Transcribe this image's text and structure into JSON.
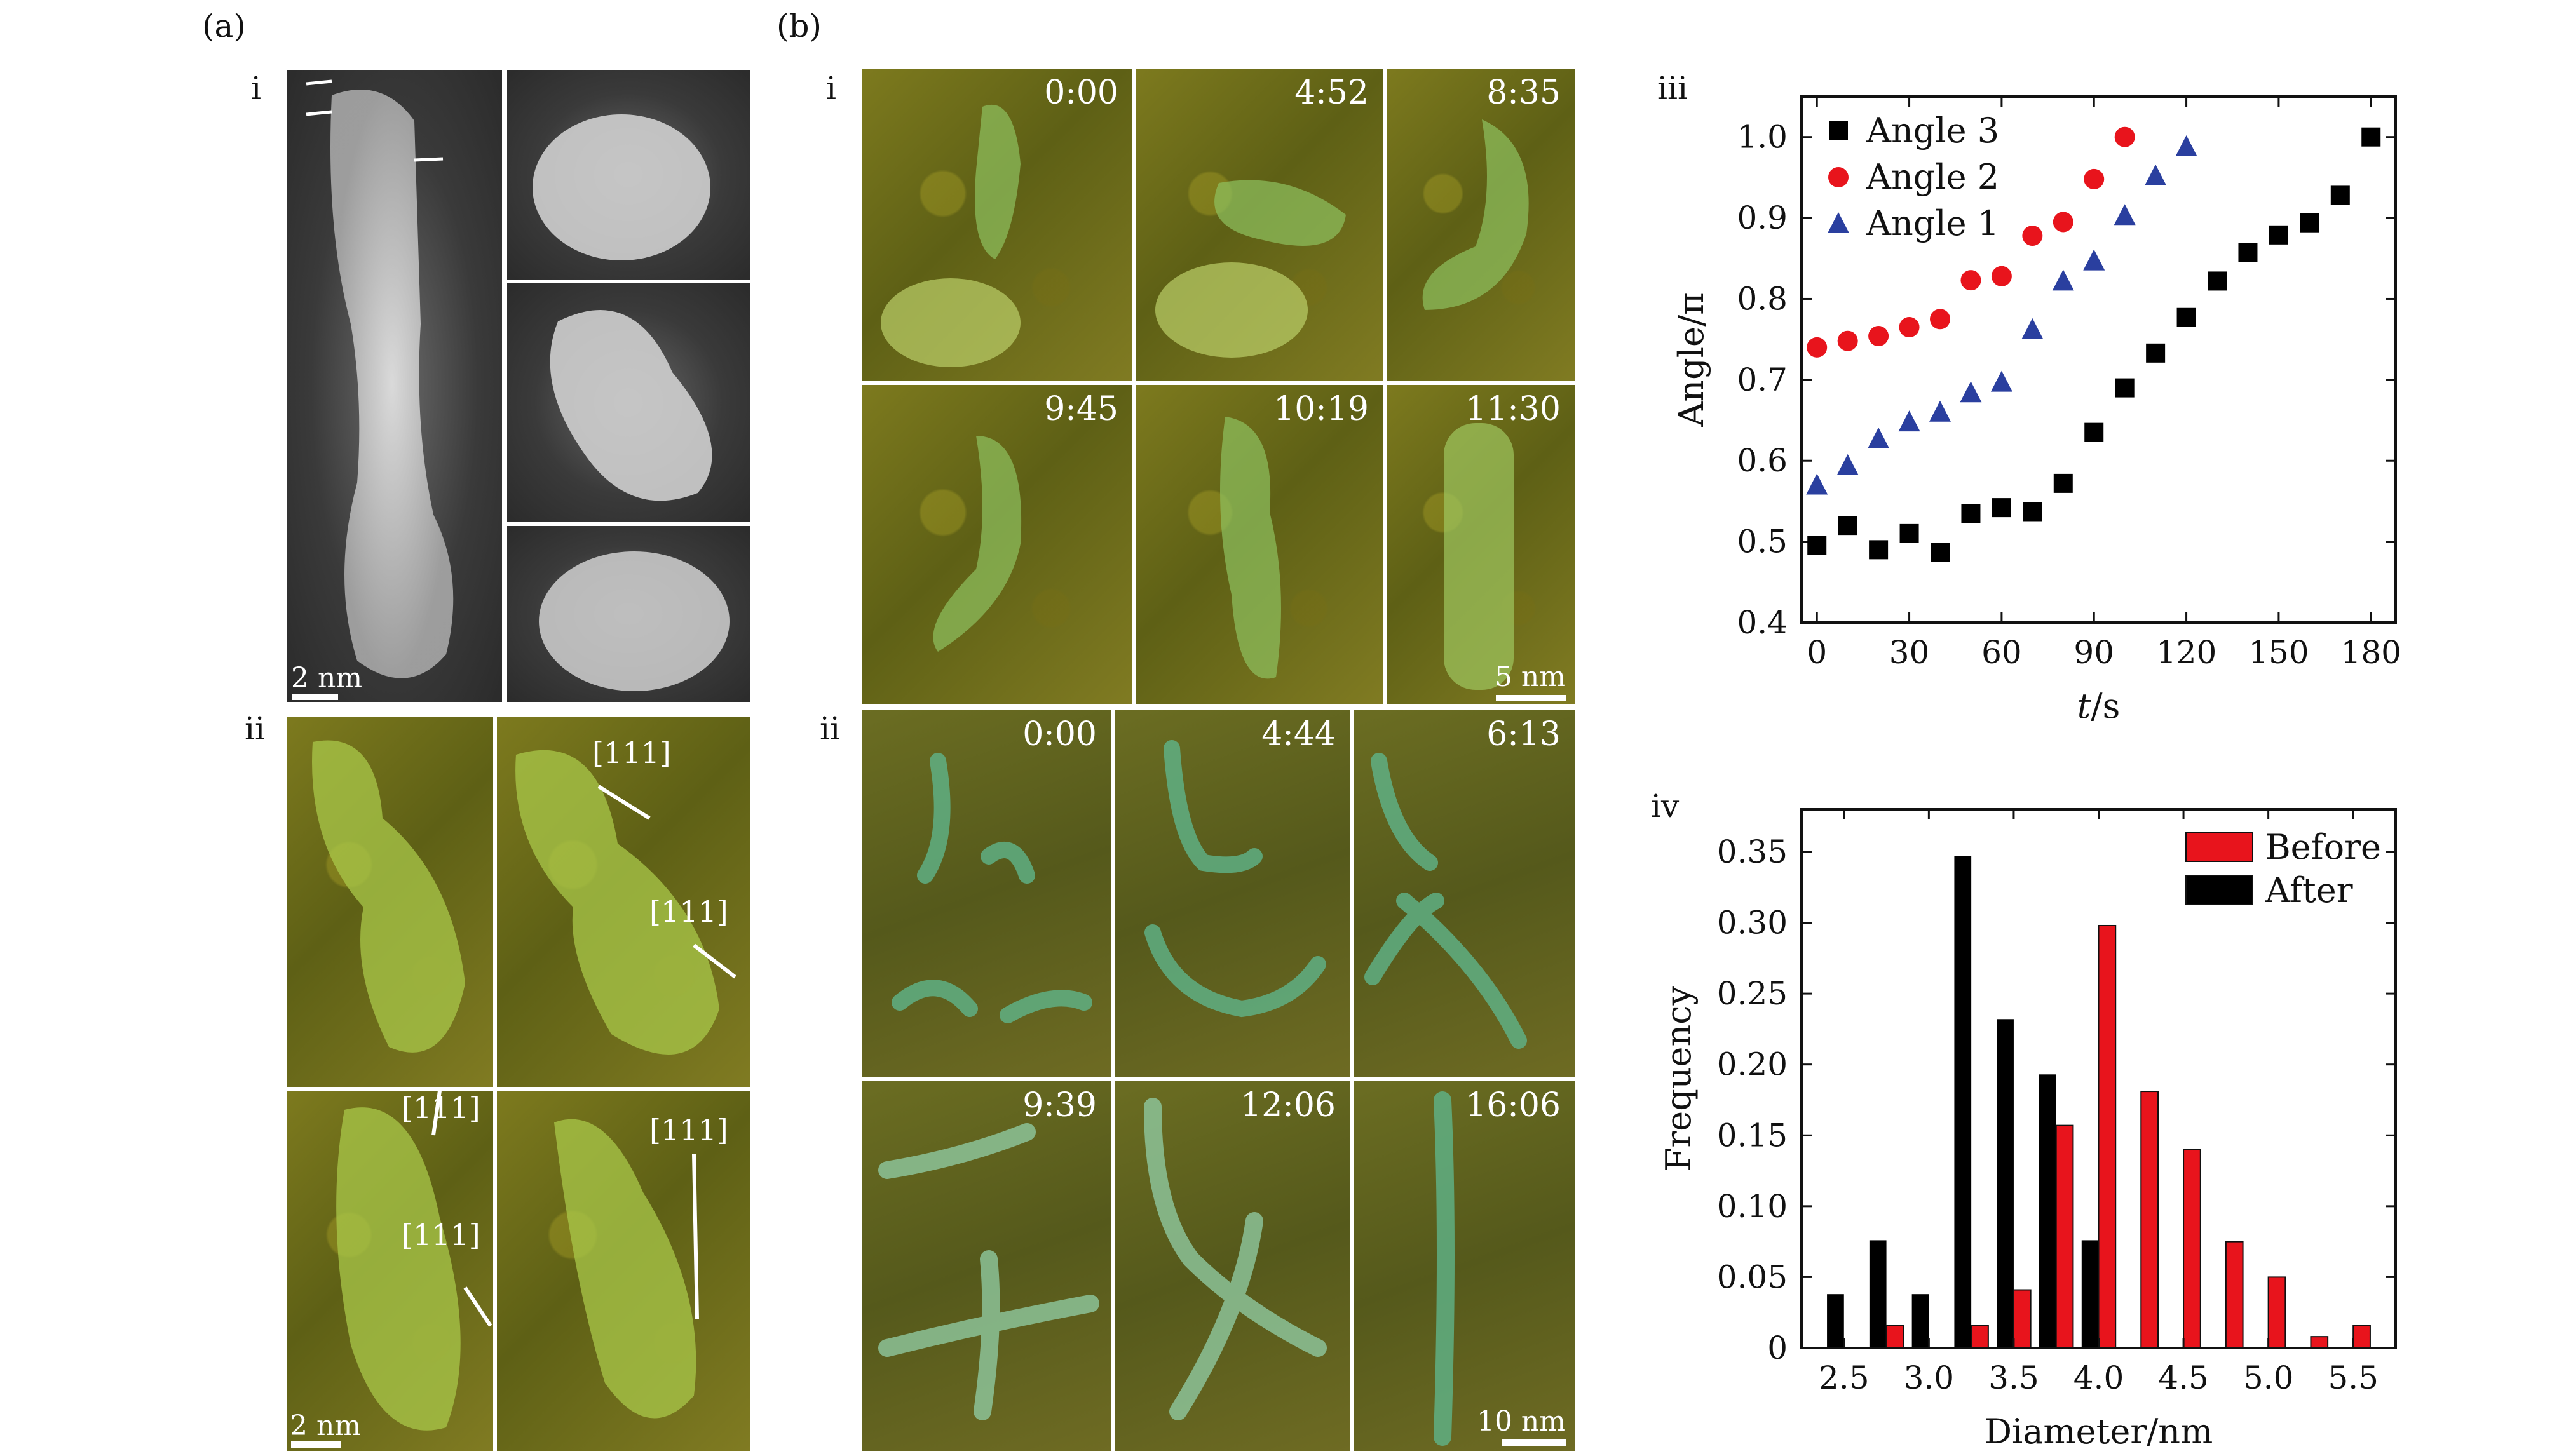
{
  "panels": {
    "a": {
      "label": "(a)",
      "i_label": "i",
      "ii_label": "ii",
      "scale_i": "2 nm",
      "scale_ii": "2 nm",
      "direction_labels": [
        "[111]",
        "[111]",
        "[111]",
        "[111]",
        "[111]"
      ]
    },
    "b": {
      "label": "(b)",
      "i_label": "i",
      "ii_label": "ii",
      "times_i": [
        "0:00",
        "4:52",
        "8:35",
        "9:45",
        "10:19",
        "11:30"
      ],
      "times_ii": [
        "0:00",
        "4:44",
        "6:13",
        "9:39",
        "12:06",
        "16:06"
      ],
      "scale_i": "5 nm",
      "scale_ii": "10 nm"
    },
    "iii_label": "iii",
    "iv_label": "iv"
  },
  "chart_data": [
    {
      "type": "scatter",
      "xlabel_italic": "t",
      "xlabel_unit": "/s",
      "ylabel": "Angle/π",
      "xlim": [
        -5,
        188
      ],
      "ylim": [
        0.4,
        1.05
      ],
      "xticks": [
        0,
        30,
        60,
        90,
        120,
        150,
        180
      ],
      "yticks": [
        0.4,
        0.5,
        0.6,
        0.7,
        0.8,
        0.9,
        1.0
      ],
      "legend_position": "top-left",
      "series": [
        {
          "name": "Angle 3",
          "marker": "square",
          "color": "#000000",
          "x": [
            0,
            10,
            20,
            30,
            40,
            50,
            60,
            70,
            80,
            90,
            100,
            110,
            120,
            130,
            140,
            150,
            160,
            170,
            180
          ],
          "y": [
            0.495,
            0.52,
            0.49,
            0.51,
            0.487,
            0.535,
            0.542,
            0.537,
            0.572,
            0.635,
            0.69,
            0.733,
            0.777,
            0.822,
            0.857,
            0.879,
            0.894,
            0.928,
            1.0
          ]
        },
        {
          "name": "Angle 2",
          "marker": "circle",
          "color": "#e8141c",
          "x": [
            0,
            10,
            20,
            30,
            40,
            50,
            60,
            70,
            80,
            90,
            100
          ],
          "y": [
            0.74,
            0.748,
            0.754,
            0.765,
            0.775,
            0.823,
            0.828,
            0.878,
            0.895,
            0.948,
            1.0
          ]
        },
        {
          "name": "Angle 1",
          "marker": "triangle",
          "color": "#2a3f9f",
          "x": [
            0,
            10,
            20,
            30,
            40,
            50,
            60,
            70,
            80,
            90,
            100,
            110,
            120
          ],
          "y": [
            0.57,
            0.594,
            0.627,
            0.648,
            0.66,
            0.684,
            0.697,
            0.762,
            0.822,
            0.847,
            0.903,
            0.952,
            0.988
          ]
        }
      ]
    },
    {
      "type": "bar",
      "xlabel": "Diameter/nm",
      "ylabel": "Frequency",
      "xlim": [
        2.25,
        5.75
      ],
      "ylim": [
        0,
        0.38
      ],
      "xticks": [
        2.5,
        3.0,
        3.5,
        4.0,
        4.5,
        5.0,
        5.5
      ],
      "yticks": [
        0,
        0.05,
        0.1,
        0.15,
        0.2,
        0.25,
        0.3,
        0.35
      ],
      "legend_position": "top-right",
      "x": [
        2.5,
        2.75,
        3.0,
        3.25,
        3.5,
        3.75,
        4.0,
        4.25,
        4.5,
        4.75,
        5.0,
        5.25,
        5.5
      ],
      "series": [
        {
          "name": "Before",
          "color": "#e8141c",
          "values": [
            0,
            0.016,
            0,
            0.016,
            0.041,
            0.157,
            0.298,
            0.181,
            0.14,
            0.075,
            0.05,
            0.008,
            0.016
          ]
        },
        {
          "name": "After",
          "color": "#000000",
          "values": [
            0.038,
            0.076,
            0.038,
            0.347,
            0.232,
            0.193,
            0.076,
            0,
            0,
            0,
            0,
            0,
            0
          ]
        }
      ]
    }
  ]
}
